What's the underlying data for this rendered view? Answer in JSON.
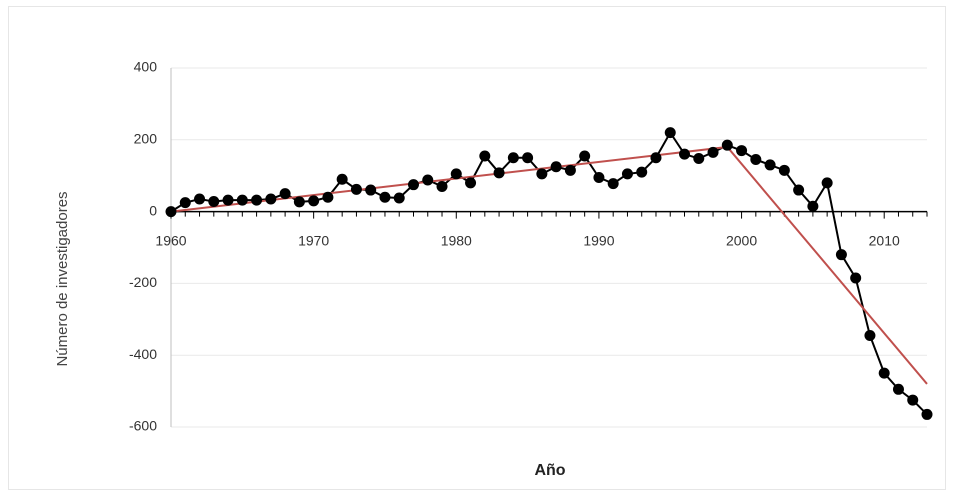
{
  "chart_data": {
    "type": "line",
    "xlabel": "Año",
    "ylabel": "Número de investigadores",
    "xlim": [
      1960,
      2013
    ],
    "ylim": [
      -600,
      400
    ],
    "x_ticks": [
      1960,
      1970,
      1980,
      1990,
      2000,
      2010
    ],
    "y_ticks": [
      400,
      200,
      0,
      -200,
      -400,
      -600
    ],
    "grid": true,
    "legend": "none",
    "colors": {
      "data": "#000000",
      "trend": "#c0504d",
      "grid": "#e9e9e9",
      "axis": "#000000"
    },
    "series": [
      {
        "x": [
          1960,
          1961,
          1962,
          1963,
          1964,
          1965,
          1966,
          1967,
          1968,
          1969,
          1970,
          1971,
          1972,
          1973,
          1974,
          1975,
          1976,
          1977,
          1978,
          1979,
          1980,
          1981,
          1982,
          1983,
          1984,
          1985,
          1986,
          1987,
          1988,
          1989,
          1990,
          1991,
          1992,
          1993,
          1994,
          1995,
          1996,
          1997,
          1998,
          1999,
          2000,
          2001,
          2002,
          2003,
          2004,
          2005,
          2006,
          2007,
          2008,
          2009,
          2010,
          2011,
          2012,
          2013
        ],
        "values": [
          0,
          25,
          35,
          28,
          32,
          32,
          32,
          35,
          50,
          27,
          30,
          40,
          90,
          62,
          60,
          40,
          38,
          75,
          88,
          70,
          105,
          80,
          155,
          108,
          150,
          150,
          105,
          125,
          115,
          155,
          95,
          78,
          105,
          110,
          150,
          220,
          160,
          148,
          165,
          185,
          170,
          145,
          130,
          115,
          60,
          15,
          80,
          -120,
          -185,
          -345,
          -450,
          -495,
          -525,
          -565
        ]
      },
      {
        "x": [
          1960,
          1999,
          2013
        ],
        "values": [
          0,
          180,
          -480
        ]
      }
    ]
  }
}
